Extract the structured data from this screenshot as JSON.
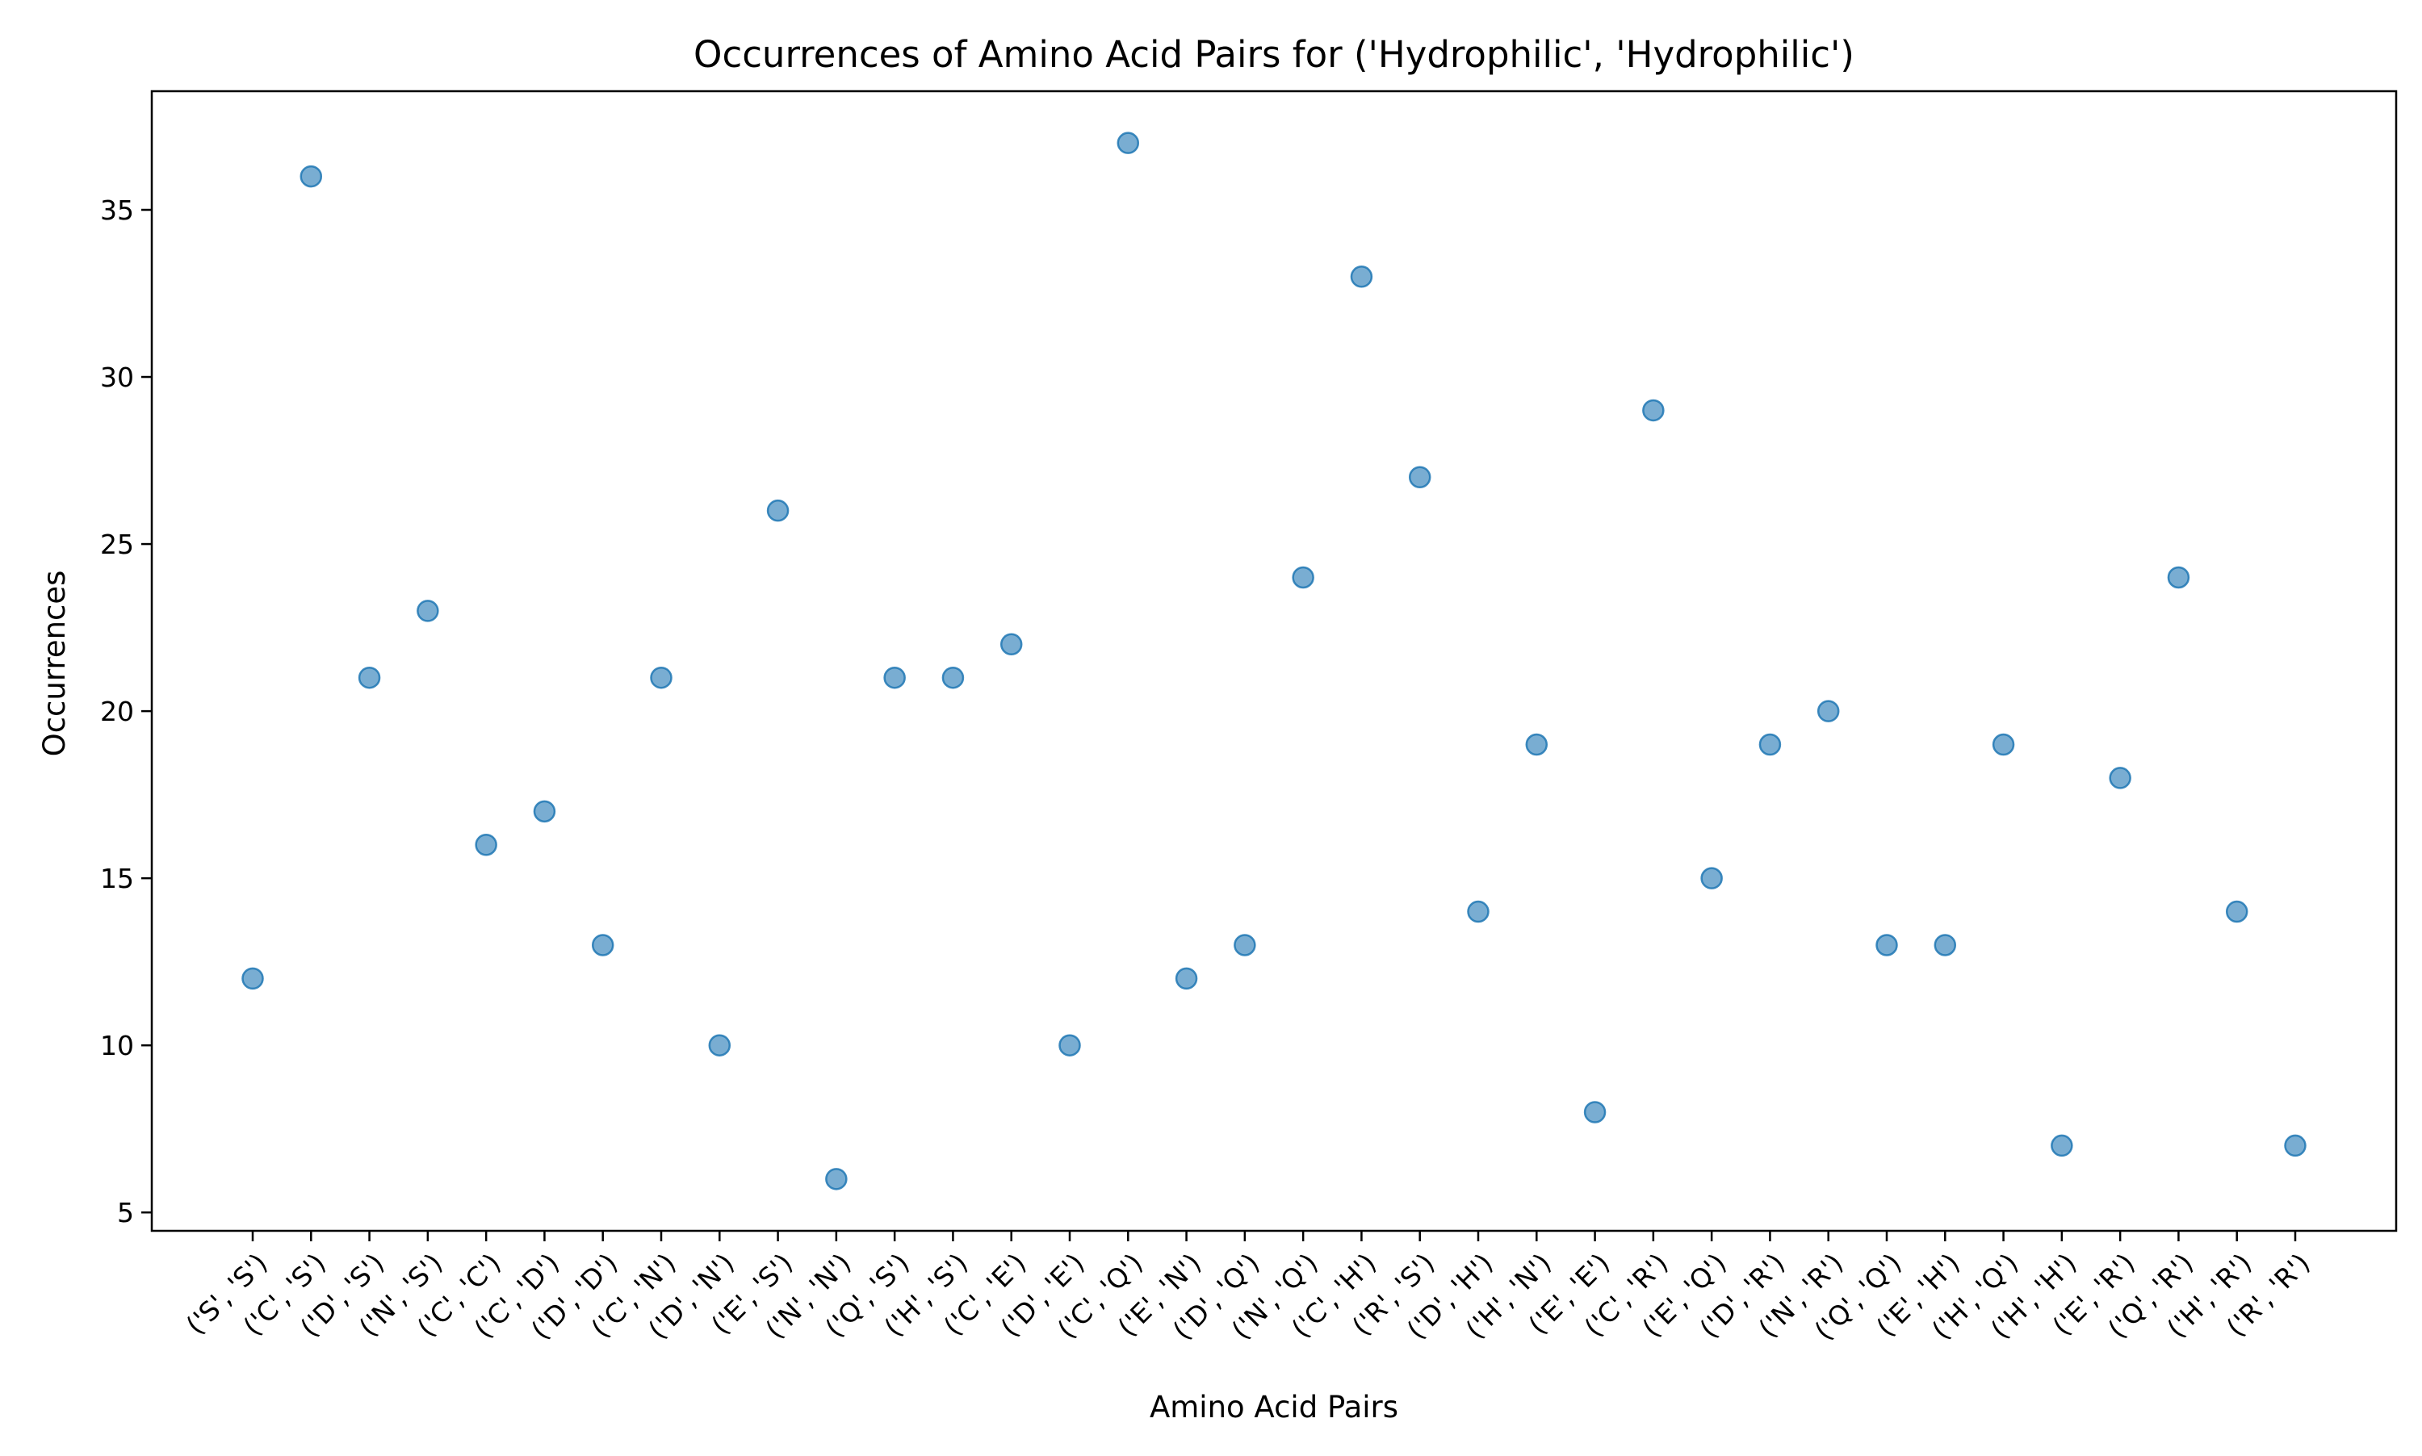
{
  "chart_data": {
    "type": "scatter",
    "title": "Occurrences of Amino Acid Pairs for ('Hydrophilic', 'Hydrophilic')",
    "xlabel": "Amino Acid Pairs",
    "ylabel": "Occurrences",
    "categories": [
      "('S', 'S')",
      "('C', 'S')",
      "('D', 'S')",
      "('N', 'S')",
      "('C', 'C')",
      "('C', 'D')",
      "('D', 'D')",
      "('C', 'N')",
      "('D', 'N')",
      "('E', 'S')",
      "('N', 'N')",
      "('Q', 'S')",
      "('H', 'S')",
      "('C', 'E')",
      "('D', 'E')",
      "('C', 'Q')",
      "('E', 'N')",
      "('D', 'Q')",
      "('N', 'Q')",
      "('C', 'H')",
      "('R', 'S')",
      "('D', 'H')",
      "('H', 'N')",
      "('E', 'E')",
      "('C', 'R')",
      "('E', 'Q')",
      "('D', 'R')",
      "('N', 'R')",
      "('Q', 'Q')",
      "('E', 'H')",
      "('H', 'Q')",
      "('H', 'H')",
      "('E', 'R')",
      "('Q', 'R')",
      "('H', 'R')",
      "('R', 'R')"
    ],
    "values": [
      12,
      36,
      21,
      23,
      16,
      17,
      13,
      21,
      10,
      26,
      6,
      21,
      21,
      22,
      10,
      37,
      12,
      13,
      24,
      33,
      27,
      14,
      19,
      8,
      29,
      15,
      19,
      20,
      13,
      13,
      19,
      7,
      18,
      24,
      14,
      7
    ],
    "ylim": [
      4.45,
      38.55
    ],
    "yticks": [
      5,
      10,
      15,
      20,
      25,
      30,
      35
    ],
    "grid": false,
    "marker_color": "#1f77b4",
    "marker_alpha": 0.6
  }
}
